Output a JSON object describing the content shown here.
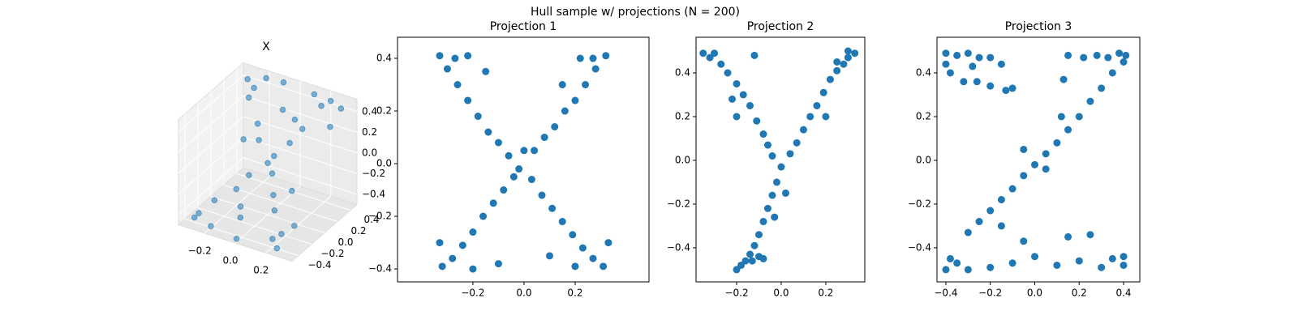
{
  "title": "Hull sample w/ projections (N = 200)",
  "chart_data": [
    {
      "type": "scatter3d",
      "title": "X",
      "color": "#1f77b4",
      "x": [
        -0.3,
        -0.28,
        -0.25,
        -0.22,
        -0.2,
        -0.18,
        -0.15,
        -0.12,
        -0.1,
        -0.08,
        -0.05,
        -0.03,
        0,
        0.02,
        0.05,
        0.08,
        0.1,
        0.12,
        0.15,
        0.18,
        0.2,
        0.22,
        0.25,
        0.28,
        0.3,
        -0.3,
        -0.25,
        0.3,
        0.25,
        -0.1,
        0.1,
        0,
        -0.2,
        0.2,
        0.05,
        -0.05
      ],
      "y": [
        0.4,
        -0.4,
        0.3,
        -0.3,
        0.45,
        -0.45,
        0.2,
        -0.2,
        0.1,
        -0.1,
        0.35,
        -0.35,
        0,
        0.05,
        -0.05,
        0.15,
        -0.15,
        0.25,
        -0.25,
        0.4,
        -0.4,
        0.45,
        -0.45,
        0.3,
        -0.3,
        -0.42,
        0.38,
        0.42,
        -0.38,
        0.48,
        0.48,
        -0.48,
        0.1,
        -0.1,
        0.3,
        -0.3
      ],
      "z": [
        0.45,
        -0.4,
        0.35,
        -0.3,
        0.48,
        -0.45,
        0.2,
        -0.2,
        0.12,
        -0.1,
        0.3,
        -0.35,
        0,
        0.05,
        -0.05,
        0.15,
        -0.18,
        0.25,
        -0.25,
        0.42,
        -0.42,
        0.46,
        -0.46,
        0.32,
        -0.3,
        -0.44,
        0.4,
        0.44,
        -0.36,
        0.47,
        0.45,
        -0.47,
        0.08,
        -0.12,
        0.28,
        -0.28
      ],
      "xlim": [
        -0.37,
        0.37
      ],
      "ylim": [
        -0.5,
        0.5
      ],
      "zlim": [
        -0.5,
        0.52
      ],
      "xticks": [
        {
          "value": -0.2,
          "label": "−0.2"
        },
        {
          "value": 0.0,
          "label": "0.0"
        },
        0.2
      ],
      "yticks": [
        {
          "value": -0.4,
          "label": "−0.4"
        },
        {
          "value": -0.2,
          "label": "−0.2"
        },
        {
          "value": 0.0,
          "label": "0.0"
        },
        0.2,
        0.4
      ],
      "zticks": [
        {
          "value": -0.4,
          "label": "−0.4"
        },
        {
          "value": -0.2,
          "label": "−0.2"
        },
        {
          "value": 0.0,
          "label": "0.0"
        },
        0.2,
        0.4
      ]
    },
    {
      "type": "scatter",
      "title": "Projection 1",
      "color": "#1f77b4",
      "x": [
        -0.33,
        -0.3,
        -0.26,
        -0.22,
        -0.18,
        -0.14,
        -0.1,
        -0.06,
        -0.02,
        0.03,
        0.07,
        0.11,
        0.15,
        0.19,
        0.23,
        0.27,
        0.31,
        0.33,
        0.32,
        0.28,
        0.24,
        0.2,
        0.16,
        0.12,
        0.08,
        0.04,
        -0.04,
        -0.08,
        -0.12,
        -0.16,
        -0.2,
        -0.24,
        -0.28,
        -0.32,
        -0.33,
        -0.22,
        -0.15,
        0.22,
        0.15,
        -0.2,
        0.2,
        0,
        -0.27,
        0.27,
        -0.1,
        0.1
      ],
      "y": [
        0.41,
        0.36,
        0.3,
        0.24,
        0.18,
        0.12,
        0.08,
        0.03,
        -0.02,
        -0.06,
        -0.12,
        -0.17,
        -0.22,
        -0.27,
        -0.32,
        -0.36,
        -0.39,
        -0.3,
        0.41,
        0.36,
        0.3,
        0.24,
        0.2,
        0.14,
        0.1,
        0.05,
        -0.05,
        -0.1,
        -0.15,
        -0.2,
        -0.26,
        -0.31,
        -0.36,
        -0.39,
        -0.3,
        0.41,
        0.35,
        0.4,
        0.3,
        -0.4,
        -0.39,
        0.05,
        0.4,
        0.4,
        -0.38,
        -0.35
      ],
      "xlim": [
        -0.495,
        0.489
      ],
      "ylim": [
        -0.449,
        0.48
      ],
      "xticks": [
        {
          "value": -0.2,
          "label": "−0.2"
        },
        {
          "value": 0.0,
          "label": "0.0"
        },
        0.2
      ],
      "yticks": [
        {
          "value": -0.4,
          "label": "−0.4"
        },
        {
          "value": -0.2,
          "label": "−0.2"
        },
        {
          "value": 0.0,
          "label": "0.0"
        },
        0.2,
        0.4
      ]
    },
    {
      "type": "scatter",
      "title": "Projection 2",
      "color": "#1f77b4",
      "x": [
        -0.35,
        -0.32,
        -0.3,
        -0.27,
        -0.24,
        -0.2,
        -0.17,
        -0.14,
        -0.11,
        -0.08,
        -0.06,
        -0.04,
        0.33,
        0.3,
        0.28,
        0.25,
        0.22,
        0.19,
        0.16,
        0.13,
        0.1,
        0.07,
        0.04,
        0.3,
        0.25,
        0,
        -0.02,
        -0.04,
        -0.06,
        -0.08,
        -0.1,
        -0.12,
        -0.14,
        -0.16,
        -0.18,
        -0.2,
        -0.13,
        -0.1,
        -0.08,
        -0.03,
        0.02,
        -0.2,
        0.2,
        -0.22,
        -0.12
      ],
      "y": [
        0.49,
        0.47,
        0.49,
        0.44,
        0.4,
        0.35,
        0.3,
        0.25,
        0.18,
        0.12,
        0.07,
        0.02,
        0.49,
        0.47,
        0.44,
        0.41,
        0.37,
        0.31,
        0.25,
        0.2,
        0.14,
        0.08,
        0.03,
        0.5,
        0.45,
        -0.03,
        -0.1,
        -0.16,
        -0.22,
        -0.28,
        -0.34,
        -0.39,
        -0.43,
        -0.46,
        -0.48,
        -0.5,
        -0.46,
        -0.44,
        -0.45,
        -0.26,
        -0.15,
        0.2,
        0.2,
        0.28,
        0.48
      ],
      "xlim": [
        -0.382,
        0.375
      ],
      "ylim": [
        -0.556,
        0.563
      ],
      "xticks": [
        {
          "value": -0.2,
          "label": "−0.2"
        },
        {
          "value": 0.0,
          "label": "0.0"
        },
        0.2
      ],
      "yticks": [
        {
          "value": -0.4,
          "label": "−0.4"
        },
        {
          "value": -0.2,
          "label": "−0.2"
        },
        {
          "value": 0.0,
          "label": "0.0"
        },
        0.2,
        0.4
      ]
    },
    {
      "type": "scatter",
      "title": "Projection 3",
      "color": "#1f77b4",
      "x": [
        -0.4,
        -0.35,
        -0.3,
        -0.25,
        -0.2,
        -0.15,
        -0.38,
        -0.32,
        -0.26,
        -0.2,
        -0.13,
        -0.1,
        -0.4,
        -0.28,
        0.15,
        0.22,
        0.28,
        0.33,
        0.38,
        0.41,
        0.4,
        0.35,
        0.3,
        0.25,
        0.2,
        0.15,
        0.1,
        0.05,
        0,
        -0.05,
        -0.1,
        -0.15,
        -0.2,
        -0.25,
        -0.3,
        0.12,
        -0.05,
        0.05,
        -0.15,
        0.13,
        -0.4,
        -0.35,
        -0.3,
        -0.2,
        -0.1,
        0,
        0.1,
        0.2,
        0.3,
        0.4,
        0.4,
        0.15,
        0.25,
        -0.05,
        0.35,
        -0.38
      ],
      "y": [
        0.49,
        0.48,
        0.49,
        0.47,
        0.47,
        0.44,
        0.4,
        0.36,
        0.36,
        0.34,
        0.32,
        0.33,
        0.44,
        0.43,
        0.48,
        0.47,
        0.48,
        0.47,
        0.49,
        0.48,
        0.45,
        0.4,
        0.33,
        0.27,
        0.2,
        0.14,
        0.08,
        0.03,
        -0.02,
        -0.07,
        -0.13,
        -0.18,
        -0.23,
        -0.28,
        -0.33,
        0.2,
        0.05,
        -0.04,
        -0.3,
        0.37,
        -0.5,
        -0.47,
        -0.5,
        -0.49,
        -0.47,
        -0.44,
        -0.48,
        -0.46,
        -0.49,
        -0.48,
        -0.44,
        -0.35,
        -0.34,
        -0.37,
        -0.45,
        -0.45
      ],
      "xlim": [
        -0.44,
        0.473
      ],
      "ylim": [
        -0.556,
        0.563
      ],
      "xticks": [
        {
          "value": -0.4,
          "label": "−0.4"
        },
        {
          "value": -0.2,
          "label": "−0.2"
        },
        {
          "value": 0.0,
          "label": "0.0"
        },
        0.2,
        0.4
      ],
      "yticks": [
        {
          "value": -0.4,
          "label": "−0.4"
        },
        {
          "value": -0.2,
          "label": "−0.2"
        },
        {
          "value": 0.0,
          "label": "0.0"
        },
        0.2,
        0.4
      ]
    }
  ]
}
